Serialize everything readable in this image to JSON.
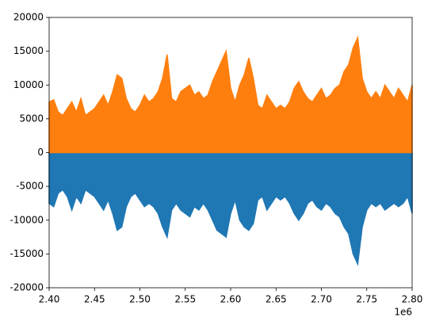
{
  "chart_data": {
    "type": "area",
    "x": [
      2400000,
      2405000,
      2410000,
      2415000,
      2420000,
      2425000,
      2430000,
      2435000,
      2440000,
      2445000,
      2450000,
      2455000,
      2460000,
      2465000,
      2470000,
      2475000,
      2480000,
      2485000,
      2490000,
      2495000,
      2500000,
      2505000,
      2510000,
      2515000,
      2520000,
      2525000,
      2530000,
      2535000,
      2540000,
      2545000,
      2550000,
      2555000,
      2560000,
      2565000,
      2570000,
      2575000,
      2580000,
      2585000,
      2590000,
      2595000,
      2600000,
      2605000,
      2610000,
      2615000,
      2620000,
      2625000,
      2630000,
      2635000,
      2640000,
      2645000,
      2650000,
      2655000,
      2660000,
      2665000,
      2670000,
      2675000,
      2680000,
      2685000,
      2690000,
      2695000,
      2700000,
      2705000,
      2710000,
      2715000,
      2720000,
      2725000,
      2730000,
      2735000,
      2740000,
      2745000,
      2750000,
      2755000,
      2760000,
      2765000,
      2770000,
      2775000,
      2780000,
      2785000,
      2790000,
      2795000,
      2800000
    ],
    "series": [
      {
        "color": "#1f77b4",
        "values": [
          -7500,
          -8000,
          -6000,
          -5500,
          -6500,
          -8500,
          -6500,
          -7500,
          -5500,
          -6000,
          -6500,
          -7500,
          -8500,
          -7000,
          -9000,
          -11500,
          -11000,
          -8000,
          -6500,
          -6000,
          -7000,
          -8000,
          -7500,
          -8000,
          -9000,
          -11000,
          -12500,
          -8500,
          -7500,
          -8500,
          -9000,
          -9500,
          -8000,
          -8500,
          -7500,
          -8500,
          -10000,
          -11500,
          -12000,
          -12500,
          -9000,
          -7000,
          -10000,
          -11000,
          -11500,
          -10500,
          -7000,
          -6500,
          -8500,
          -7500,
          -6500,
          -7000,
          -6500,
          -7500,
          -9000,
          -10000,
          -9000,
          -7500,
          -7000,
          -8000,
          -8500,
          -7500,
          -8000,
          -9000,
          -9500,
          -11000,
          -12000,
          -15000,
          -16500,
          -11000,
          -8500,
          -7500,
          -8000,
          -7500,
          -8500,
          -8000,
          -7500,
          -8000,
          -7500,
          -6500,
          -9000
        ]
      },
      {
        "color": "#ff7f0e",
        "values": [
          7500,
          7800,
          6000,
          5500,
          6500,
          7500,
          6000,
          8000,
          5500,
          6000,
          6500,
          7500,
          8500,
          7000,
          9000,
          11500,
          11000,
          8000,
          6500,
          6000,
          7000,
          8500,
          7500,
          8000,
          9000,
          11000,
          14500,
          8000,
          7500,
          9000,
          9500,
          10000,
          8500,
          9000,
          8000,
          8500,
          10500,
          12000,
          13500,
          15000,
          9500,
          7500,
          10000,
          11500,
          14000,
          11000,
          7000,
          6500,
          8500,
          7500,
          6500,
          7000,
          6500,
          7500,
          9500,
          10500,
          9000,
          8000,
          7500,
          8500,
          9500,
          8000,
          8500,
          9500,
          10000,
          12000,
          13000,
          15500,
          17000,
          11000,
          9000,
          8000,
          9000,
          8000,
          10000,
          9000,
          8000,
          9500,
          8500,
          7500,
          10000
        ]
      }
    ],
    "xlim": [
      2400000,
      2800000
    ],
    "xticks": [
      {
        "value": 2400000,
        "label": "2.40"
      },
      {
        "value": 2450000,
        "label": "2.45"
      },
      {
        "value": 2500000,
        "label": "2.50"
      },
      {
        "value": 2550000,
        "label": "2.55"
      },
      {
        "value": 2600000,
        "label": "2.60"
      },
      {
        "value": 2650000,
        "label": "2.65"
      },
      {
        "value": 2700000,
        "label": "2.70"
      },
      {
        "value": 2750000,
        "label": "2.75"
      },
      {
        "value": 2800000,
        "label": "2.80"
      }
    ],
    "x_offset_label": "1e6",
    "ylim": [
      -20000,
      20000
    ],
    "yticks": [
      -20000,
      -15000,
      -10000,
      -5000,
      0,
      5000,
      10000,
      15000,
      20000
    ],
    "grid": false
  }
}
